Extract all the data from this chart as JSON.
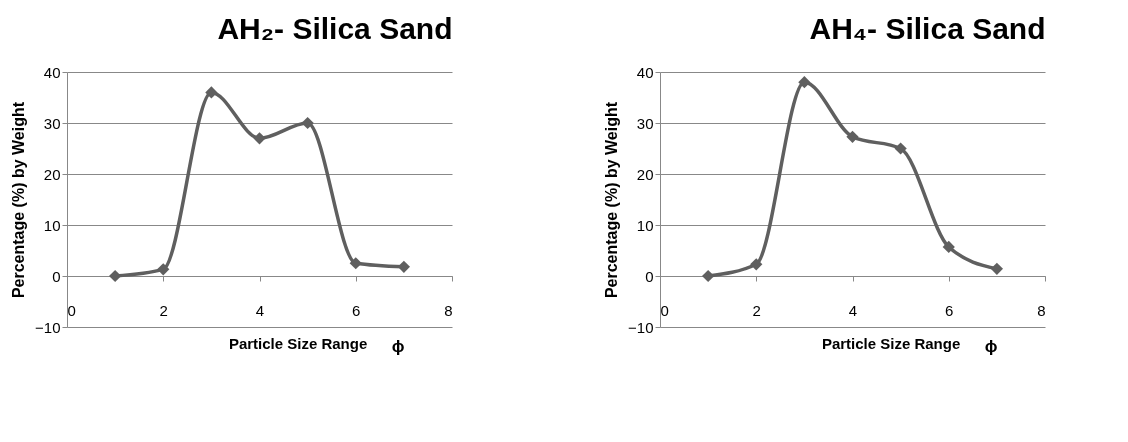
{
  "chart_data": [
    {
      "type": "line",
      "title": "AH₂-  Silica Sand",
      "xlabel": "Particle Size Range",
      "ylabel": "Percentage (%) by Weight",
      "annotations": [
        "ϕ"
      ],
      "x": [
        1,
        2,
        3,
        4,
        5,
        6,
        7
      ],
      "series": [
        {
          "color": "#5f5f5f",
          "values": [
            0,
            1.3,
            36,
            27,
            30,
            2.5,
            1.8
          ]
        }
      ],
      "xlim": [
        0,
        8
      ],
      "xticks": [
        0,
        2,
        4,
        6,
        8
      ],
      "ylim": [
        -10,
        40
      ],
      "yticks": [
        -10,
        0,
        10,
        20,
        30,
        40
      ],
      "grid": "y",
      "marker": "diamond",
      "line_style": "solid"
    },
    {
      "type": "line",
      "title": "AH₄-  Silica Sand",
      "xlabel": "Particle Size Range",
      "ylabel": "Percentage (%) by Weight",
      "annotations": [
        "ϕ"
      ],
      "x": [
        1,
        2,
        3,
        4,
        5,
        6,
        7
      ],
      "series": [
        {
          "color": "#5f5f5f",
          "values": [
            0,
            2.3,
            38,
            27.3,
            25,
            5.7,
            1.4
          ]
        }
      ],
      "xlim": [
        0,
        8
      ],
      "xticks": [
        0,
        2,
        4,
        6,
        8
      ],
      "ylim": [
        -10,
        40
      ],
      "yticks": [
        -10,
        0,
        10,
        20,
        30,
        40
      ],
      "grid": "y",
      "marker": "diamond",
      "line_style": "solid"
    }
  ]
}
